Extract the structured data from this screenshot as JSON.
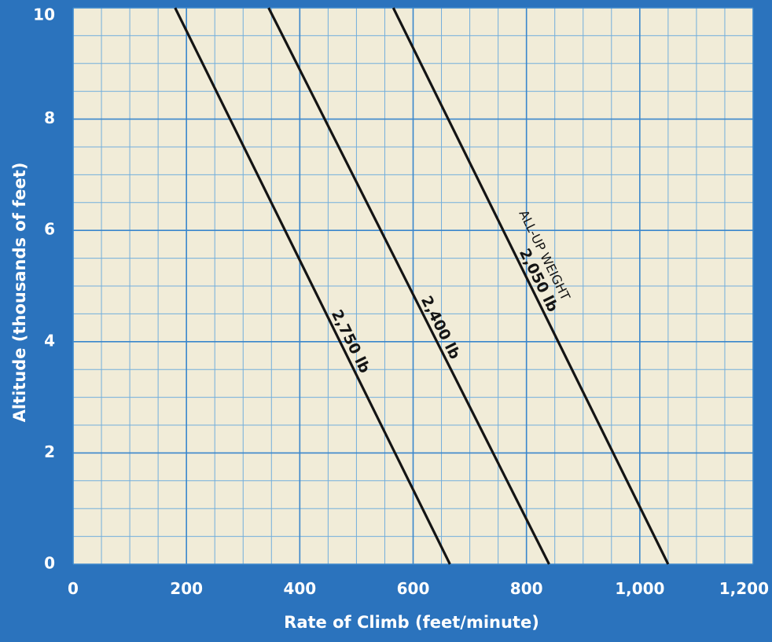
{
  "chart_data": {
    "type": "line",
    "title": "",
    "xlabel": "Rate of Climb (feet/minute)",
    "ylabel": "Altitude (thousands of feet)",
    "xlim": [
      0,
      1200
    ],
    "ylim": [
      0,
      10
    ],
    "x_ticks": [
      "0",
      "200",
      "400",
      "600",
      "800",
      "1,000",
      "1,200"
    ],
    "y_ticks": [
      "0",
      "2",
      "4",
      "6",
      "8",
      "10"
    ],
    "grid": true,
    "annotation": "ALL-UP WEIGHT",
    "series": [
      {
        "name": "2,750 lb",
        "x": [
          180,
          665
        ],
        "y": [
          10,
          0
        ]
      },
      {
        "name": "2,400 lb",
        "x": [
          345,
          840
        ],
        "y": [
          10,
          0
        ]
      },
      {
        "name": "2,050 lb",
        "x": [
          565,
          1050
        ],
        "y": [
          10,
          0
        ]
      }
    ],
    "colors": {
      "background": "#2b73bd",
      "plot_area": "#f1ecd8",
      "grid_major": "#3a86cc",
      "grid_minor": "#72aedc",
      "line": "#141414",
      "tick_text": "#ffffff"
    }
  }
}
